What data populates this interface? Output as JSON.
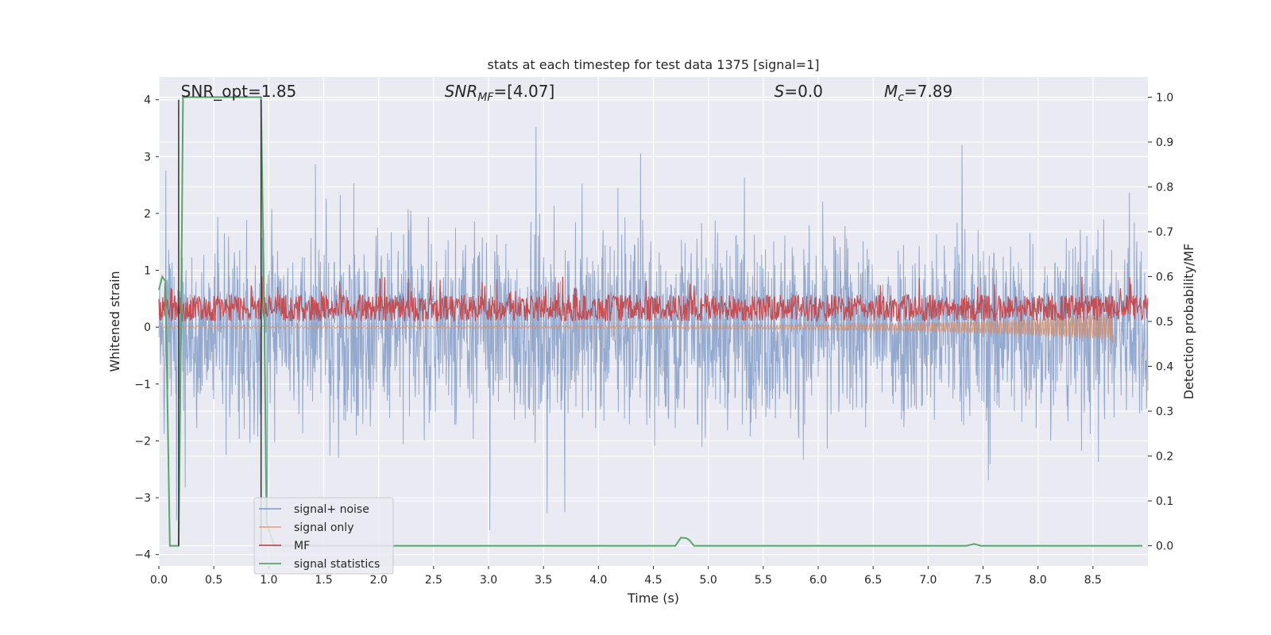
{
  "chart_data": {
    "type": "line",
    "title": "stats at each timestep for test data 1375 [signal=1]",
    "xlabel": "Time (s)",
    "ylabel": "Whitened strain",
    "ylabel_right": "Detection probability/MF",
    "xlim": [
      0,
      9.0
    ],
    "ylim": [
      -4.2,
      4.4
    ],
    "ylim_right": [
      -0.045,
      1.045
    ],
    "x_ticks": [
      "0.0",
      "0.5",
      "1.0",
      "1.5",
      "2.0",
      "2.5",
      "3.0",
      "3.5",
      "4.0",
      "4.5",
      "5.0",
      "5.5",
      "6.0",
      "6.5",
      "7.0",
      "7.5",
      "8.0",
      "8.5"
    ],
    "y_ticks": [
      "4",
      "3",
      "2",
      "1",
      "0",
      "−1",
      "−2",
      "−3",
      "−4"
    ],
    "y_ticks_right": [
      "1.0",
      "0.9",
      "0.8",
      "0.7",
      "0.6",
      "0.5",
      "0.4",
      "0.3",
      "0.2",
      "0.1",
      "0.0"
    ],
    "grid": true,
    "legend_position": "lower-left",
    "annotations": [
      {
        "text": "SNR_opt=1.85",
        "x": 0.2,
        "y": 4.05
      },
      {
        "text": "SNR_MF=[4.07]",
        "x": 2.6,
        "y": 4.05
      },
      {
        "text": "S=0.0",
        "x": 5.6,
        "y": 4.05
      },
      {
        "text": "M_c=7.89",
        "x": 6.6,
        "y": 4.05
      }
    ],
    "vertical_lines": [
      0.18,
      0.93
    ],
    "series": [
      {
        "name": "signal+ noise",
        "color": "#4c72b0",
        "axis": "left",
        "kind": "noise",
        "amplitude_typical": 1.5,
        "amplitude_max": 4.0
      },
      {
        "name": "signal only",
        "color": "#dd8452",
        "axis": "left",
        "kind": "chirp",
        "end_time": 8.68,
        "end_value": -0.28
      },
      {
        "name": "MF",
        "color": "#c44e52",
        "axis": "right",
        "kind": "mf",
        "typical": 0.53,
        "max": 0.6
      },
      {
        "name": "signal statistics",
        "color": "#55a868",
        "axis": "right",
        "x": [
          0.0,
          0.03,
          0.06,
          0.1,
          0.12,
          0.18,
          0.2,
          0.22,
          0.25,
          0.28,
          0.35,
          0.5,
          0.7,
          0.9,
          0.93,
          0.96,
          0.98,
          1.05,
          1.5,
          2.0,
          3.0,
          4.0,
          4.7,
          4.75,
          4.8,
          4.83,
          4.87,
          5.0,
          6.0,
          7.0,
          7.35,
          7.42,
          7.48,
          7.6,
          8.0,
          8.5,
          8.95
        ],
        "y": [
          0.57,
          0.6,
          0.59,
          0.0,
          0.0,
          0.0,
          0.45,
          1.0,
          1.0,
          1.0,
          1.0,
          1.0,
          1.0,
          1.0,
          1.0,
          0.5,
          0.05,
          0.0,
          0.0,
          0.0,
          0.0,
          0.0,
          0.0,
          0.018,
          0.017,
          0.012,
          0.0,
          0.0,
          0.0,
          0.0,
          0.0,
          0.004,
          0.0,
          0.0,
          0.0,
          0.0,
          0.0
        ]
      }
    ]
  }
}
